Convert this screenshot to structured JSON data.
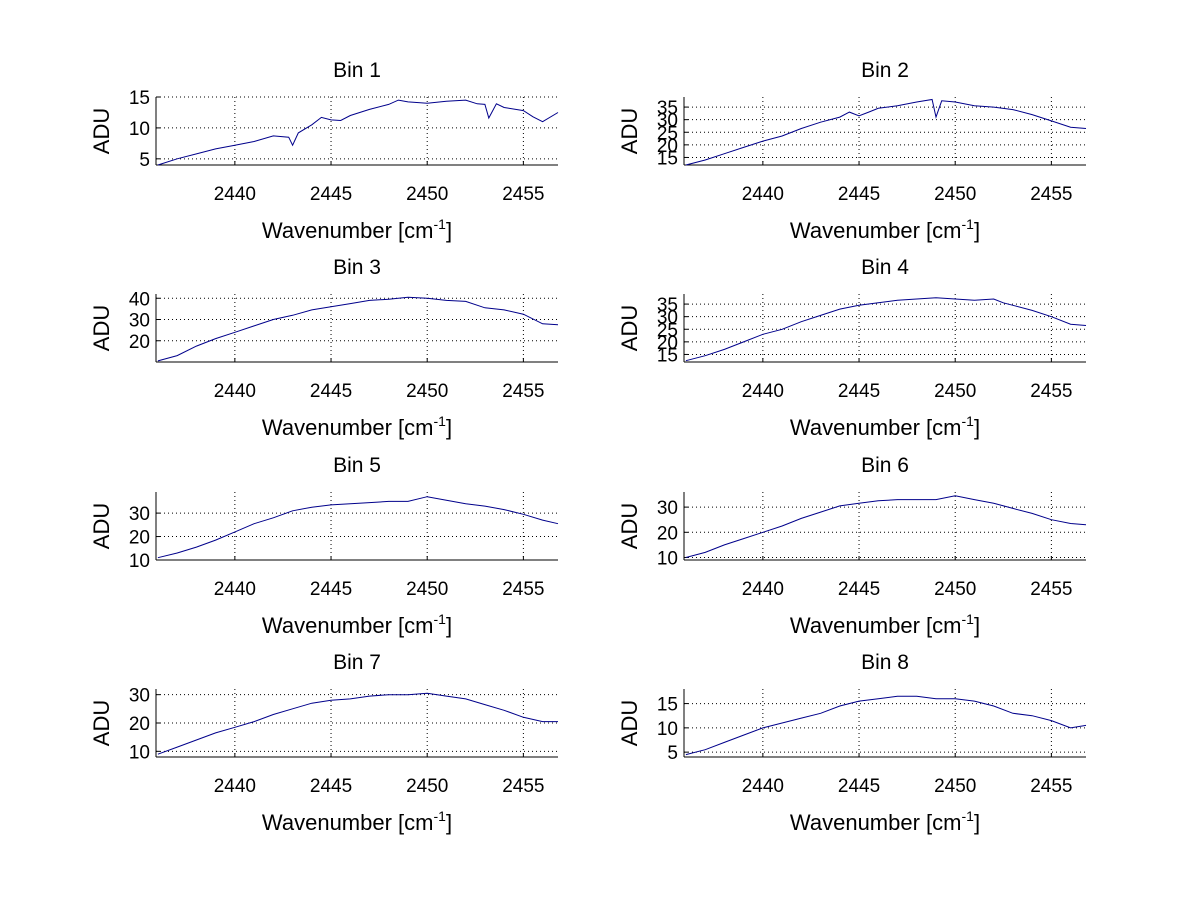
{
  "chart_data": [
    {
      "type": "line",
      "title": "Bin 1",
      "xlabel": "Wavenumber [cm",
      "xlabel_sup": "-1",
      "xlabel_end": "]",
      "ylabel": "ADU",
      "xlim": [
        2435.9,
        2456.8
      ],
      "ylim": [
        4,
        15
      ],
      "xticks": [
        2440,
        2445,
        2450,
        2455
      ],
      "yticks": [
        5,
        10,
        15
      ],
      "grid": "dotted",
      "line_color": "#00008b",
      "series": [
        {
          "x": [
            2436,
            2437,
            2438,
            2439,
            2440,
            2441,
            2442,
            2442.8,
            2443,
            2443.3,
            2444,
            2444.5,
            2445,
            2445.5,
            2446,
            2447,
            2448,
            2448.5,
            2449,
            2450,
            2451,
            2452,
            2452.6,
            2453,
            2453.2,
            2453.6,
            2454,
            2455,
            2455.5,
            2456,
            2456.8
          ],
          "y": [
            4.0,
            5.0,
            5.8,
            6.6,
            7.2,
            7.8,
            8.7,
            8.5,
            7.2,
            9.2,
            10.5,
            11.7,
            11.3,
            11.2,
            12.0,
            13.0,
            13.8,
            14.5,
            14.2,
            14.0,
            14.3,
            14.5,
            13.9,
            13.8,
            11.6,
            13.9,
            13.3,
            12.8,
            11.8,
            11.0,
            12.5
          ]
        }
      ]
    },
    {
      "type": "line",
      "title": "Bin 2",
      "xlabel": "Wavenumber [cm",
      "xlabel_sup": "-1",
      "xlabel_end": "]",
      "ylabel": "ADU",
      "xlim": [
        2435.9,
        2456.8
      ],
      "ylim": [
        12,
        39
      ],
      "xticks": [
        2440,
        2445,
        2450,
        2455
      ],
      "yticks": [
        15,
        20,
        25,
        30,
        35
      ],
      "grid": "dotted",
      "line_color": "#00008b",
      "series": [
        {
          "x": [
            2436,
            2437,
            2438,
            2439,
            2440,
            2441,
            2442,
            2443,
            2444,
            2444.5,
            2445,
            2445.5,
            2446,
            2447,
            2448,
            2448.8,
            2449,
            2449.3,
            2450,
            2451,
            2452,
            2453,
            2454,
            2455,
            2456,
            2456.8
          ],
          "y": [
            12,
            14,
            16.5,
            19,
            21.5,
            23.5,
            26.5,
            29,
            31,
            33,
            31.5,
            33,
            34.5,
            35.5,
            37,
            38,
            31,
            37.5,
            37,
            35.5,
            35,
            34,
            32,
            29.5,
            27,
            26.5
          ]
        }
      ]
    },
    {
      "type": "line",
      "title": "Bin 3",
      "xlabel": "Wavenumber [cm",
      "xlabel_sup": "-1",
      "xlabel_end": "]",
      "ylabel": "ADU",
      "xlim": [
        2435.9,
        2456.8
      ],
      "ylim": [
        10,
        42
      ],
      "xticks": [
        2440,
        2445,
        2450,
        2455
      ],
      "yticks": [
        20,
        30,
        40
      ],
      "grid": "dotted",
      "line_color": "#00008b",
      "series": [
        {
          "x": [
            2436,
            2437,
            2438,
            2439,
            2440,
            2441,
            2442,
            2443,
            2444,
            2445,
            2446,
            2447,
            2448,
            2449,
            2450,
            2451,
            2452,
            2453,
            2454,
            2455,
            2456,
            2456.8
          ],
          "y": [
            10.5,
            13,
            17.5,
            21,
            24,
            27,
            30,
            32,
            34.5,
            36,
            37.5,
            39,
            39.5,
            40.5,
            40,
            39,
            38.5,
            35.5,
            34.5,
            32.5,
            28,
            27.5
          ]
        }
      ]
    },
    {
      "type": "line",
      "title": "Bin 4",
      "xlabel": "Wavenumber [cm",
      "xlabel_sup": "-1",
      "xlabel_end": "]",
      "ylabel": "ADU",
      "xlim": [
        2435.9,
        2456.8
      ],
      "ylim": [
        12,
        39
      ],
      "xticks": [
        2440,
        2445,
        2450,
        2455
      ],
      "yticks": [
        15,
        20,
        25,
        30,
        35
      ],
      "grid": "dotted",
      "line_color": "#00008b",
      "series": [
        {
          "x": [
            2436,
            2437,
            2438,
            2439,
            2440,
            2441,
            2442,
            2443,
            2444,
            2445,
            2446,
            2447,
            2448,
            2449,
            2450,
            2451,
            2452,
            2452.5,
            2453,
            2454,
            2455,
            2456,
            2456.8
          ],
          "y": [
            12.5,
            14.5,
            17,
            20,
            23,
            25,
            28,
            30.5,
            33,
            34.5,
            35.5,
            36.5,
            37,
            37.5,
            37,
            36.5,
            37,
            35.5,
            34.5,
            32.5,
            30,
            27,
            26.5
          ]
        }
      ]
    },
    {
      "type": "line",
      "title": "Bin 5",
      "xlabel": "Wavenumber [cm",
      "xlabel_sup": "-1",
      "xlabel_end": "]",
      "ylabel": "ADU",
      "xlim": [
        2435.9,
        2456.8
      ],
      "ylim": [
        10,
        39
      ],
      "xticks": [
        2440,
        2445,
        2450,
        2455
      ],
      "yticks": [
        10,
        20,
        30
      ],
      "grid": "dotted",
      "line_color": "#00008b",
      "series": [
        {
          "x": [
            2436,
            2437,
            2438,
            2439,
            2440,
            2441,
            2442,
            2443,
            2444,
            2445,
            2446,
            2447,
            2448,
            2449,
            2450,
            2451,
            2452,
            2453,
            2454,
            2455,
            2456,
            2456.8
          ],
          "y": [
            11,
            13,
            15.5,
            18.5,
            22,
            25.5,
            28,
            31,
            32.5,
            33.5,
            34,
            34.5,
            35,
            35,
            37,
            35.5,
            34,
            33,
            31.5,
            29.5,
            27,
            25.5
          ]
        }
      ]
    },
    {
      "type": "line",
      "title": "Bin 6",
      "xlabel": "Wavenumber [cm",
      "xlabel_sup": "-1",
      "xlabel_end": "]",
      "ylabel": "ADU",
      "xlim": [
        2435.9,
        2456.8
      ],
      "ylim": [
        9,
        36
      ],
      "xticks": [
        2440,
        2445,
        2450,
        2455
      ],
      "yticks": [
        10,
        20,
        30
      ],
      "grid": "dotted",
      "line_color": "#00008b",
      "series": [
        {
          "x": [
            2436,
            2437,
            2438,
            2439,
            2440,
            2441,
            2442,
            2443,
            2444,
            2445,
            2446,
            2447,
            2448,
            2449,
            2450,
            2451,
            2452,
            2453,
            2454,
            2455,
            2456,
            2456.8
          ],
          "y": [
            10,
            12,
            15,
            17.5,
            20,
            22.5,
            25.5,
            28,
            30.5,
            31.5,
            32.5,
            33,
            33,
            33,
            34.5,
            33,
            31.5,
            29.5,
            27.5,
            25,
            23.5,
            23
          ]
        }
      ]
    },
    {
      "type": "line",
      "title": "Bin 7",
      "xlabel": "Wavenumber [cm",
      "xlabel_sup": "-1",
      "xlabel_end": "]",
      "ylabel": "ADU",
      "xlim": [
        2435.9,
        2456.8
      ],
      "ylim": [
        8,
        32
      ],
      "xticks": [
        2440,
        2445,
        2450,
        2455
      ],
      "yticks": [
        10,
        20,
        30
      ],
      "grid": "dotted",
      "line_color": "#00008b",
      "series": [
        {
          "x": [
            2436,
            2437,
            2438,
            2439,
            2440,
            2441,
            2442,
            2443,
            2444,
            2445,
            2446,
            2447,
            2448,
            2449,
            2450,
            2451,
            2452,
            2453,
            2454,
            2455,
            2456,
            2456.8
          ],
          "y": [
            9,
            11.5,
            14,
            16.5,
            18.5,
            20.5,
            23,
            25,
            27,
            28,
            28.5,
            29.5,
            30,
            30,
            30.5,
            29.5,
            28.5,
            26.5,
            24.5,
            22,
            20.5,
            20.5
          ]
        }
      ]
    },
    {
      "type": "line",
      "title": "Bin 8",
      "xlabel": "Wavenumber [cm",
      "xlabel_sup": "-1",
      "xlabel_end": "]",
      "ylabel": "ADU",
      "xlim": [
        2435.9,
        2456.8
      ],
      "ylim": [
        4,
        18
      ],
      "xticks": [
        2440,
        2445,
        2450,
        2455
      ],
      "yticks": [
        5,
        10,
        15
      ],
      "grid": "dotted",
      "line_color": "#00008b",
      "series": [
        {
          "x": [
            2436,
            2437,
            2438,
            2439,
            2440,
            2441,
            2442,
            2443,
            2444,
            2445,
            2446,
            2447,
            2448,
            2449,
            2450,
            2451,
            2452,
            2453,
            2454,
            2455,
            2456,
            2456.8
          ],
          "y": [
            4.5,
            5.5,
            7,
            8.5,
            10,
            11,
            12,
            13,
            14.5,
            15.5,
            16,
            16.5,
            16.5,
            16,
            16,
            15.5,
            14.5,
            13,
            12.5,
            11.5,
            10,
            10.5
          ]
        }
      ]
    }
  ]
}
